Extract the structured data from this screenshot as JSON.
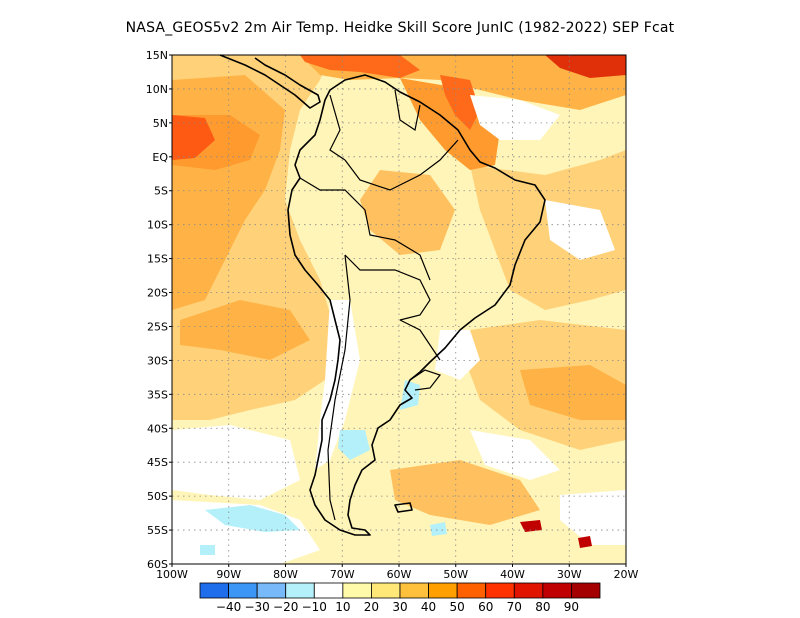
{
  "title": "NASA_GEOS5v2  2m Air Temp. Heidke Skill Score JunIC (1982-2022) SEP Fcat",
  "map": {
    "region": "South America",
    "projection": "equirectangular",
    "lon_range": [
      -100,
      -20
    ],
    "lat_range": [
      -60,
      15
    ],
    "grid": "dotted",
    "lon_tick_labels": [
      "100W",
      "90W",
      "80W",
      "70W",
      "60W",
      "50W",
      "40W",
      "30W",
      "20W"
    ],
    "lat_tick_labels": [
      "15N",
      "10N",
      "5N",
      "EQ",
      "5S",
      "10S",
      "15S",
      "20S",
      "25S",
      "30S",
      "35S",
      "40S",
      "45S",
      "50S",
      "55S",
      "60S"
    ]
  },
  "colorbar": {
    "colors": [
      "#1e6eeb",
      "#3c96f5",
      "#78b9fa",
      "#b4f0fa",
      "#ffffff",
      "#fffaaa",
      "#ffe878",
      "#ffc03c",
      "#ffa000",
      "#ff6000",
      "#ff3200",
      "#e11400",
      "#c00000",
      "#a50000"
    ],
    "labels": [
      "-40",
      "-30",
      "-20",
      "-10",
      "10",
      "20",
      "30",
      "40",
      "50",
      "60",
      "70",
      "80",
      "90"
    ]
  }
}
